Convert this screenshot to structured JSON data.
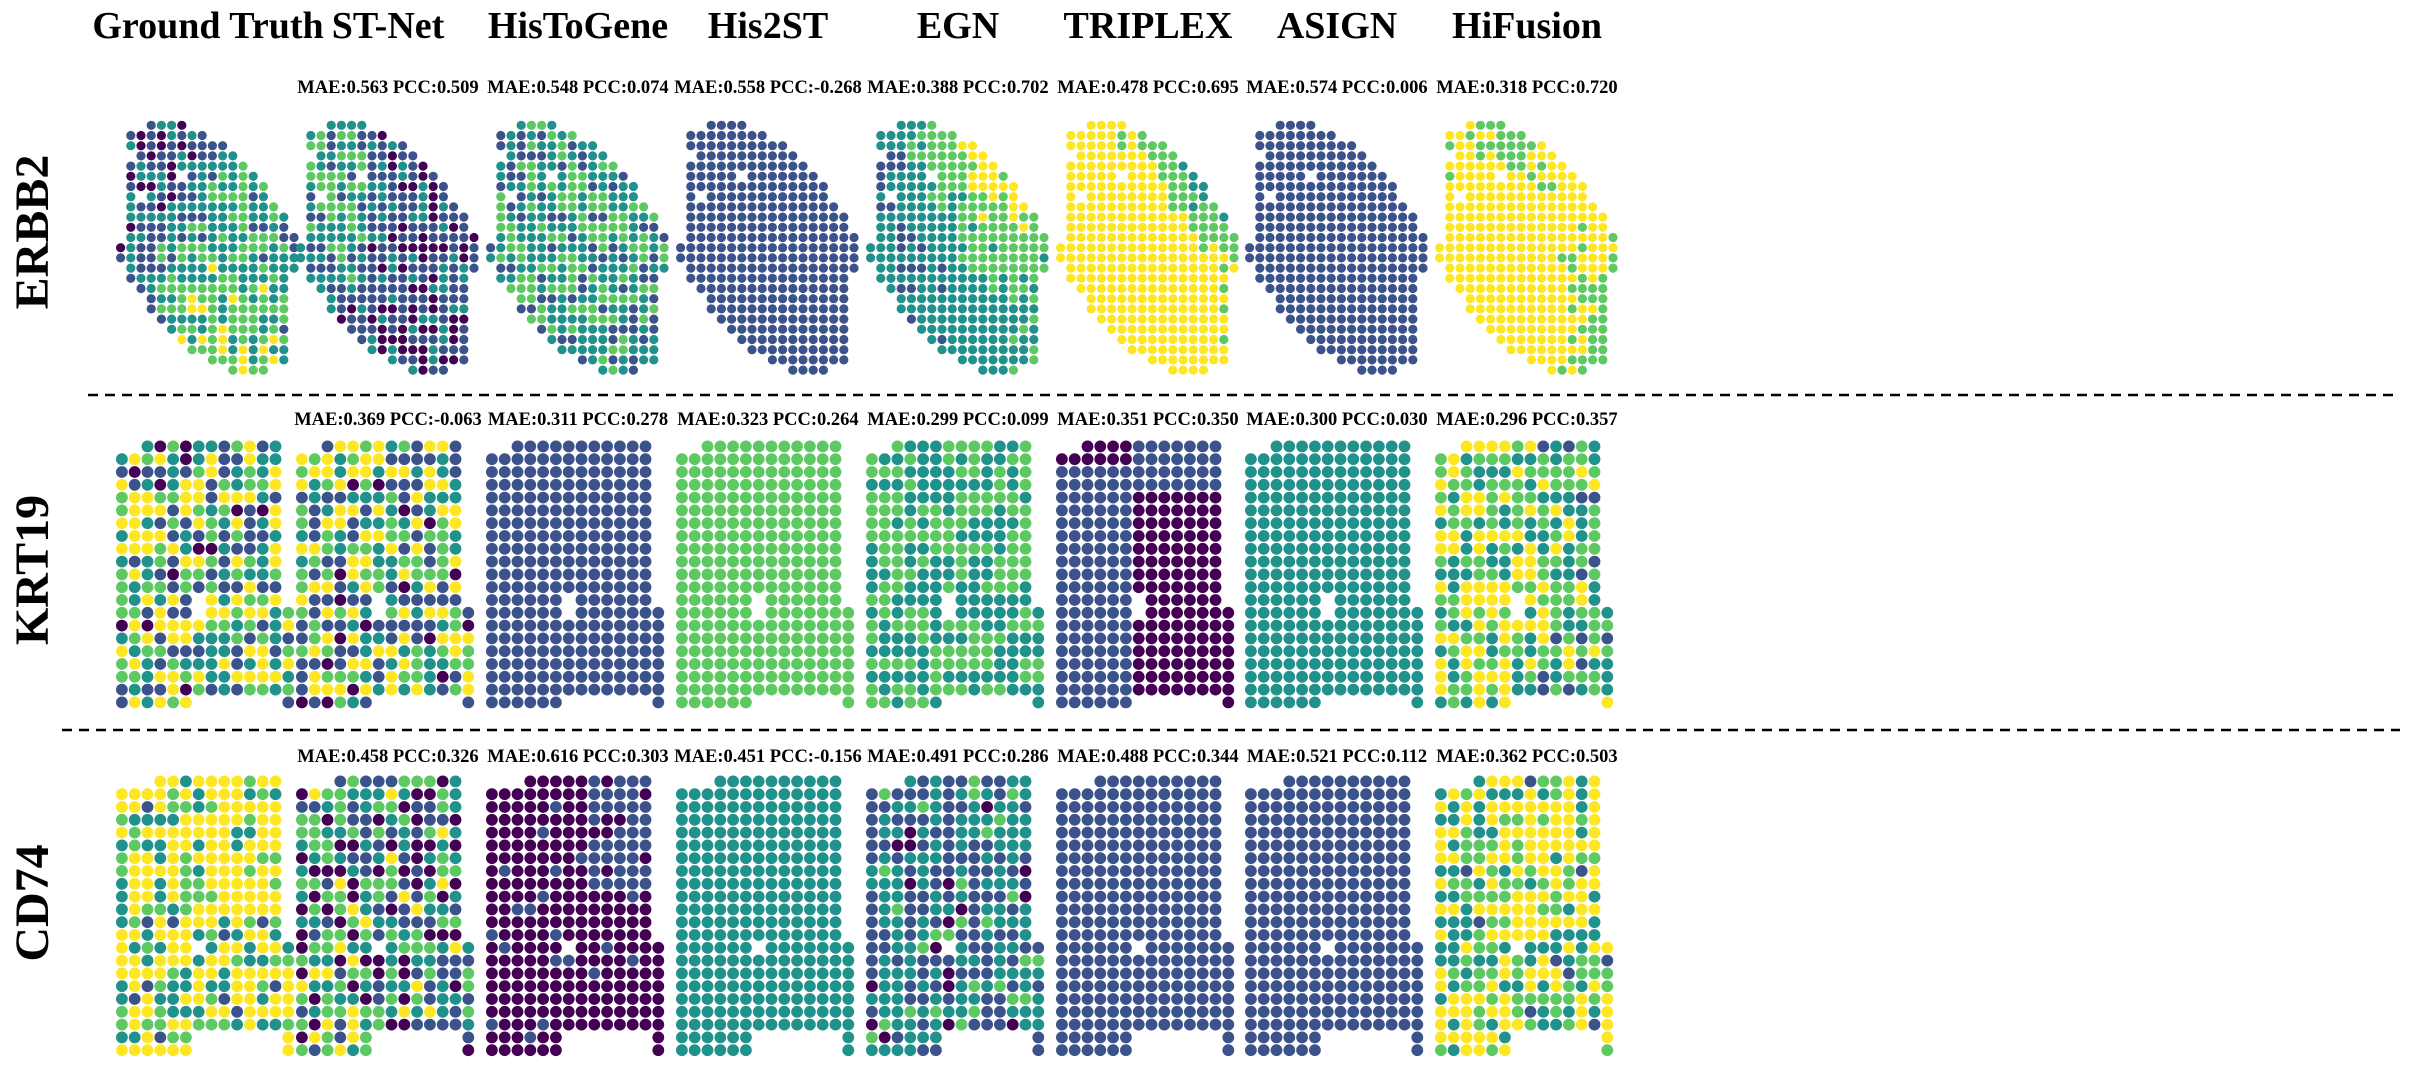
{
  "figure": {
    "columns": [
      "Ground Truth",
      "ST-Net",
      "HisToGene",
      "His2ST",
      "EGN",
      "TRIPLEX",
      "ASIGN",
      "HiFusion"
    ],
    "colormap": [
      "#440154",
      "#3b528b",
      "#21918c",
      "#5ec962",
      "#fde725"
    ],
    "rows": [
      {
        "gene": "ERBB2",
        "metrics": [
          "",
          "MAE:0.563 PCC:0.509",
          "MAE:0.548 PCC:0.074",
          "MAE:0.558 PCC:-0.268",
          "MAE:0.388 PCC:0.702",
          "MAE:0.478 PCC:0.695",
          "MAE:0.574 PCC:0.006",
          "MAE:0.318 PCC:0.720"
        ]
      },
      {
        "gene": "KRT19",
        "metrics": [
          "",
          "MAE:0.369 PCC:-0.063",
          "MAE:0.311 PCC:0.278",
          "MAE:0.323 PCC:0.264",
          "MAE:0.299 PCC:0.099",
          "MAE:0.351 PCC:0.350",
          "MAE:0.300 PCC:0.030",
          "MAE:0.296 PCC:0.357"
        ]
      },
      {
        "gene": "CD74",
        "metrics": [
          "",
          "MAE:0.458 PCC:0.326",
          "MAE:0.616 PCC:0.303",
          "MAE:0.451 PCC:-0.156",
          "MAE:0.491 PCC:0.286",
          "MAE:0.488 PCC:0.344",
          "MAE:0.521 PCC:0.112",
          "MAE:0.362 PCC:0.503"
        ]
      }
    ]
  }
}
